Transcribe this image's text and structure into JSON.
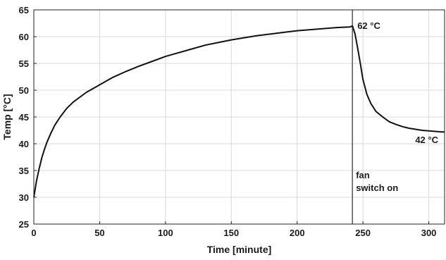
{
  "chart_data": {
    "type": "line",
    "xlabel": "Time [minute]",
    "ylabel": "Temp [°C]",
    "xlim": [
      0,
      312
    ],
    "ylim": [
      25,
      65
    ],
    "xticks": [
      0,
      50,
      100,
      150,
      200,
      250,
      300
    ],
    "yticks": [
      25,
      30,
      35,
      40,
      45,
      50,
      55,
      60,
      65
    ],
    "grid": true,
    "series": [
      {
        "x": [
          0,
          1,
          2,
          4,
          6,
          8,
          10,
          13,
          16,
          20,
          25,
          30,
          40,
          50,
          60,
          70,
          80,
          90,
          100,
          110,
          120,
          130,
          140,
          150,
          160,
          170,
          180,
          190,
          200,
          210,
          220,
          230,
          240,
          242,
          244,
          246,
          248,
          250,
          253,
          256,
          260,
          265,
          270,
          275,
          280,
          285,
          290,
          295,
          300,
          305,
          310,
          312
        ],
        "y": [
          30,
          31.5,
          33,
          35.3,
          37.3,
          38.9,
          40.3,
          42,
          43.5,
          45,
          46.6,
          47.8,
          49.6,
          51,
          52.4,
          53.5,
          54.5,
          55.4,
          56.3,
          57,
          57.7,
          58.4,
          58.9,
          59.4,
          59.8,
          60.2,
          60.5,
          60.8,
          61.1,
          61.3,
          61.5,
          61.7,
          61.8,
          62,
          60.5,
          57.8,
          55,
          52,
          49.2,
          47.5,
          46,
          45,
          44.1,
          43.6,
          43.2,
          42.9,
          42.7,
          42.5,
          42.4,
          42.3,
          42.2,
          42.2
        ],
        "color": "#111111"
      }
    ],
    "vertical_line": {
      "x": 242,
      "color": "#555555"
    },
    "annotations": [
      {
        "text": "62 °C"
      },
      {
        "text": "42 °C"
      },
      {
        "text": "fan"
      },
      {
        "text": "switch on"
      }
    ]
  }
}
